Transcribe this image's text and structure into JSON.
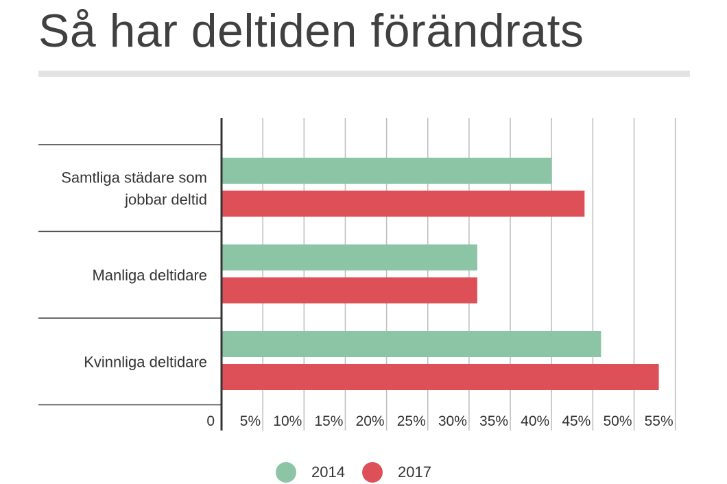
{
  "chart_data": {
    "type": "bar",
    "orientation": "horizontal",
    "title": "Så har deltiden förändrats",
    "categories": [
      "Samtliga städare som\njobbar deltid",
      "Manliga deltidare",
      "Kvinnliga deltidare"
    ],
    "series": [
      {
        "name": "2014",
        "values": [
          40,
          31,
          46
        ]
      },
      {
        "name": "2017",
        "values": [
          44,
          31,
          53
        ]
      }
    ],
    "x_ticks": [
      {
        "value": 0,
        "label": "0"
      },
      {
        "value": 5,
        "label": "5%"
      },
      {
        "value": 10,
        "label": "10%"
      },
      {
        "value": 15,
        "label": "15%"
      },
      {
        "value": 20,
        "label": "20%"
      },
      {
        "value": 25,
        "label": "25%"
      },
      {
        "value": 30,
        "label": "30%"
      },
      {
        "value": 35,
        "label": "35%"
      },
      {
        "value": 40,
        "label": "40%"
      },
      {
        "value": 45,
        "label": "45%"
      },
      {
        "value": 50,
        "label": "50%"
      },
      {
        "value": 55,
        "label": "55%"
      }
    ],
    "xlim": [
      0,
      55
    ],
    "xlabel": "",
    "ylabel": "",
    "grid": true,
    "legend_position": "bottom",
    "colors": {
      "2014": "#8cc5a6",
      "2017": "#de5057"
    }
  },
  "legend": {
    "items": [
      {
        "label": "2014",
        "color": "#8cc5a6"
      },
      {
        "label": "2017",
        "color": "#de5057"
      }
    ]
  }
}
